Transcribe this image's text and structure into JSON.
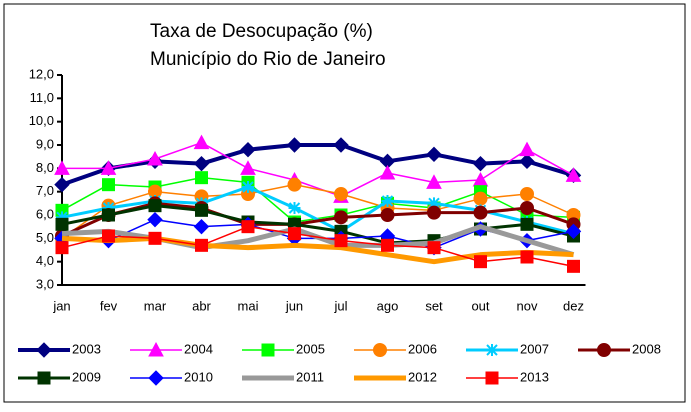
{
  "chart_data": {
    "type": "line",
    "title": "Taxa de Desocupação (%)",
    "subtitle": "Município do Rio de Janeiro",
    "categories": [
      "jan",
      "fev",
      "mar",
      "abr",
      "mai",
      "jun",
      "jul",
      "ago",
      "set",
      "out",
      "nov",
      "dez"
    ],
    "ylim": [
      3,
      12
    ],
    "yticks": [
      {
        "value": 3,
        "label": "3,0"
      },
      {
        "value": 4,
        "label": "4,0"
      },
      {
        "value": 5,
        "label": "5,0"
      },
      {
        "value": 6,
        "label": "6,0"
      },
      {
        "value": 7,
        "label": "7,0"
      },
      {
        "value": 8,
        "label": "8,0"
      },
      {
        "value": 9,
        "label": "9,0"
      },
      {
        "value": 10,
        "label": "10,0"
      },
      {
        "value": 11,
        "label": "11,0"
      },
      {
        "value": 12,
        "label": "12,0"
      }
    ],
    "grid": false,
    "legend": "bottom",
    "series": [
      {
        "name": "2003",
        "color": "#000080",
        "marker": "diamond",
        "width": 4,
        "values": [
          7.3,
          8.0,
          8.3,
          8.2,
          8.8,
          9.0,
          9.0,
          8.3,
          8.6,
          8.2,
          8.3,
          7.7
        ]
      },
      {
        "name": "2004",
        "color": "#ff00ff",
        "marker": "triangle",
        "width": 1.5,
        "values": [
          8.0,
          8.0,
          8.4,
          9.1,
          8.0,
          7.5,
          6.8,
          7.8,
          7.4,
          7.5,
          8.8,
          7.7
        ]
      },
      {
        "name": "2005",
        "color": "#00ff00",
        "marker": "square",
        "width": 1.5,
        "values": [
          6.2,
          7.3,
          7.2,
          7.6,
          7.4,
          5.7,
          6.0,
          6.5,
          6.3,
          7.0,
          6.0,
          5.9
        ]
      },
      {
        "name": "2006",
        "color": "#ff8000",
        "marker": "circle",
        "width": 1.5,
        "values": [
          5.0,
          6.4,
          7.0,
          6.8,
          6.9,
          7.3,
          6.9,
          6.3,
          6.2,
          6.7,
          6.9,
          6.0
        ]
      },
      {
        "name": "2007",
        "color": "#00ccff",
        "marker": "asterisk",
        "width": 3,
        "values": [
          5.9,
          6.3,
          6.6,
          6.5,
          7.2,
          6.3,
          5.3,
          6.6,
          6.5,
          6.2,
          5.7,
          5.2
        ]
      },
      {
        "name": "2008",
        "color": "#800000",
        "marker": "circle",
        "width": 3,
        "values": [
          5.1,
          6.0,
          6.5,
          6.3,
          5.6,
          5.6,
          5.9,
          6.0,
          6.1,
          6.1,
          6.3,
          5.6
        ]
      },
      {
        "name": "2009",
        "color": "#003300",
        "marker": "square",
        "width": 3,
        "values": [
          5.6,
          6.0,
          6.4,
          6.2,
          5.7,
          5.6,
          5.3,
          4.8,
          4.9,
          5.4,
          5.6,
          5.1
        ]
      },
      {
        "name": "2010",
        "color": "#0000ff",
        "marker": "diamond",
        "width": 1.5,
        "values": [
          5.0,
          4.9,
          5.8,
          5.5,
          5.6,
          5.0,
          5.0,
          5.1,
          4.6,
          5.4,
          4.9,
          5.3
        ]
      },
      {
        "name": "2011",
        "color": "#999999",
        "marker": "none",
        "width": 5,
        "values": [
          5.2,
          5.3,
          5.0,
          4.6,
          4.9,
          5.4,
          4.7,
          4.7,
          4.8,
          5.5,
          4.9,
          4.3
        ]
      },
      {
        "name": "2012",
        "color": "#ff9900",
        "marker": "none",
        "width": 5,
        "values": [
          5.0,
          4.9,
          5.0,
          4.7,
          4.6,
          4.7,
          4.6,
          4.3,
          4.0,
          4.3,
          4.4,
          4.3
        ]
      },
      {
        "name": "2013",
        "color": "#ff0000",
        "marker": "square",
        "width": 1.5,
        "values": [
          4.6,
          5.1,
          5.0,
          4.7,
          5.5,
          5.2,
          4.9,
          4.7,
          4.6,
          4.0,
          4.2,
          3.8
        ]
      }
    ]
  }
}
